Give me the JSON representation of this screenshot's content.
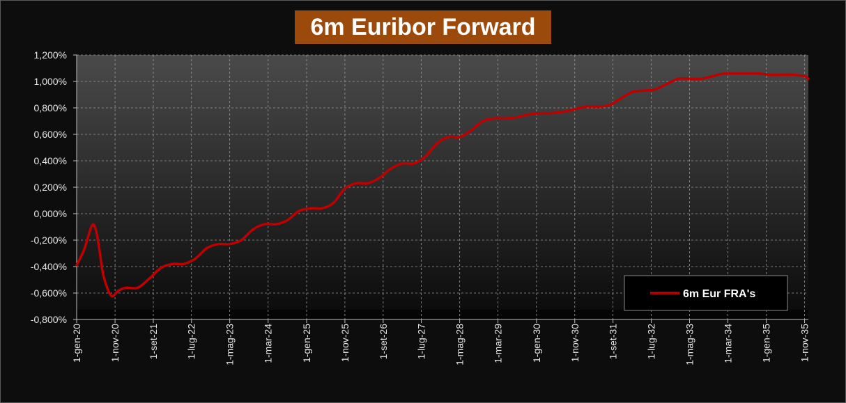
{
  "chart_data": {
    "type": "line",
    "title": "6m Euribor Forward",
    "xlabel": "",
    "ylabel": "",
    "ylim": [
      -0.8,
      1.2
    ],
    "y_ticks": [
      {
        "value": 1.2,
        "label": "1,200%"
      },
      {
        "value": 1.0,
        "label": "1,000%"
      },
      {
        "value": 0.8,
        "label": "0,800%"
      },
      {
        "value": 0.6,
        "label": "0,600%"
      },
      {
        "value": 0.4,
        "label": "0,400%"
      },
      {
        "value": 0.2,
        "label": "0,200%"
      },
      {
        "value": 0.0,
        "label": "0,000%"
      },
      {
        "value": -0.2,
        "label": "-0,200%"
      },
      {
        "value": -0.4,
        "label": "-0,400%"
      },
      {
        "value": -0.6,
        "label": "-0,600%"
      },
      {
        "value": -0.8,
        "label": "-0,800%"
      }
    ],
    "x_ticks": [
      "1-gen-20",
      "1-nov-20",
      "1-set-21",
      "1-lug-22",
      "1-mag-23",
      "1-mar-24",
      "1-gen-25",
      "1-nov-25",
      "1-set-26",
      "1-lug-27",
      "1-mag-28",
      "1-mar-29",
      "1-gen-30",
      "1-nov-30",
      "1-set-31",
      "1-lug-32",
      "1-mag-33",
      "1-mar-34",
      "1-gen-35",
      "1-nov-35"
    ],
    "x_range": [
      "2020-01-01",
      "2035-12-01"
    ],
    "grid": true,
    "legend_position": "bottom-right",
    "colors": {
      "line": "#c00000",
      "title_bg": "#9c4a0c"
    },
    "series": [
      {
        "name": "6m Eur FRA's",
        "x": [
          "2020-01-01",
          "2020-03-01",
          "2020-05-01",
          "2020-06-01",
          "2020-07-01",
          "2020-08-01",
          "2020-10-01",
          "2020-12-01",
          "2021-02-01",
          "2021-05-01",
          "2021-08-01",
          "2021-11-01",
          "2022-02-01",
          "2022-05-01",
          "2022-08-01",
          "2022-11-01",
          "2023-02-01",
          "2023-05-01",
          "2023-08-01",
          "2023-11-01",
          "2024-02-01",
          "2024-05-01",
          "2024-08-01",
          "2024-11-01",
          "2025-02-01",
          "2025-05-01",
          "2025-08-01",
          "2025-11-01",
          "2026-02-01",
          "2026-05-01",
          "2026-08-01",
          "2026-11-01",
          "2027-02-01",
          "2027-05-01",
          "2027-08-01",
          "2027-11-01",
          "2028-02-01",
          "2028-05-01",
          "2028-08-01",
          "2028-11-01",
          "2029-02-01",
          "2029-05-01",
          "2029-08-01",
          "2029-11-01",
          "2030-02-01",
          "2030-05-01",
          "2030-08-01",
          "2030-11-01",
          "2031-02-01",
          "2031-05-01",
          "2031-08-01",
          "2031-11-01",
          "2032-02-01",
          "2032-05-01",
          "2032-08-01",
          "2032-11-01",
          "2033-02-01",
          "2033-05-01",
          "2033-08-01",
          "2033-11-01",
          "2034-02-01",
          "2034-05-01",
          "2034-08-01",
          "2034-11-01",
          "2035-02-01",
          "2035-05-01",
          "2035-08-01",
          "2035-11-01",
          "2035-12-01"
        ],
        "y": [
          -0.39,
          -0.27,
          -0.09,
          -0.12,
          -0.28,
          -0.47,
          -0.62,
          -0.58,
          -0.56,
          -0.56,
          -0.49,
          -0.41,
          -0.38,
          -0.38,
          -0.34,
          -0.26,
          -0.23,
          -0.23,
          -0.2,
          -0.12,
          -0.08,
          -0.08,
          -0.05,
          0.02,
          0.04,
          0.04,
          0.08,
          0.19,
          0.23,
          0.23,
          0.27,
          0.34,
          0.38,
          0.38,
          0.43,
          0.53,
          0.58,
          0.58,
          0.63,
          0.7,
          0.72,
          0.72,
          0.73,
          0.75,
          0.76,
          0.76,
          0.77,
          0.79,
          0.81,
          0.81,
          0.82,
          0.87,
          0.92,
          0.93,
          0.94,
          0.98,
          1.02,
          1.02,
          1.02,
          1.04,
          1.06,
          1.06,
          1.06,
          1.06,
          1.05,
          1.05,
          1.05,
          1.04,
          1.02
        ]
      }
    ]
  }
}
